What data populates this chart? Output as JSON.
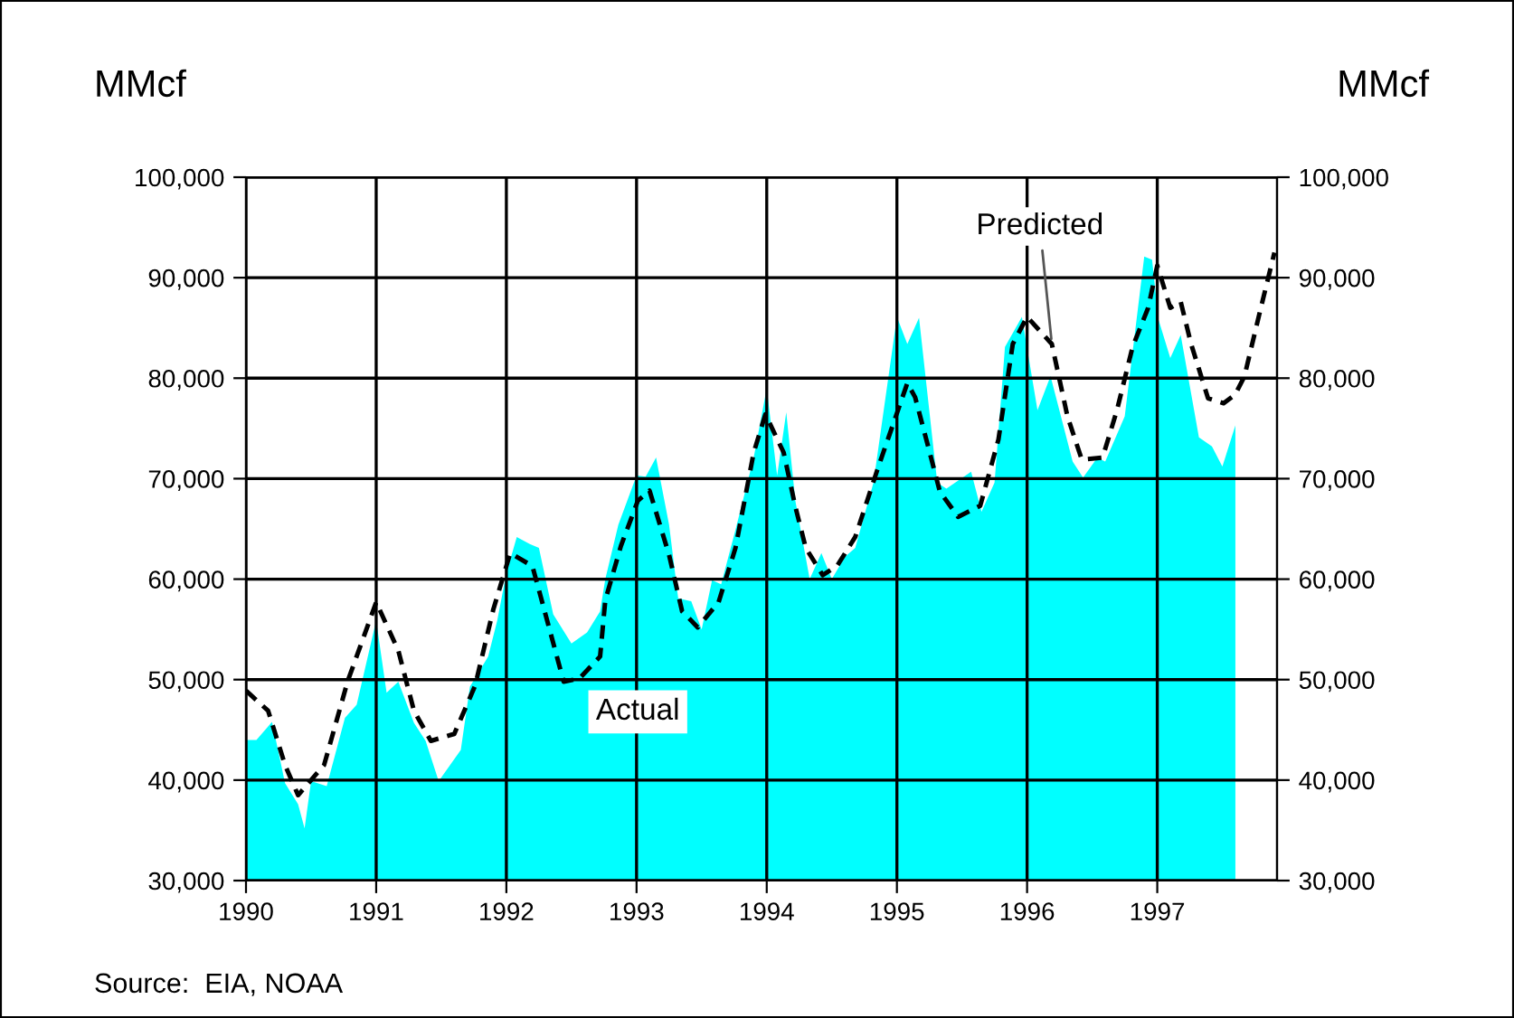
{
  "chart_data": {
    "type": "area",
    "xlabel": null,
    "ylabel": "MMcf",
    "y2label": "MMcf",
    "xlim": [
      1990,
      1997.92
    ],
    "xticks": [
      1990,
      1991,
      1992,
      1993,
      1994,
      1995,
      1996,
      1997
    ],
    "ylim": [
      30000,
      100000
    ],
    "yticks": [
      {
        "value": 30000,
        "label": "30,000"
      },
      {
        "value": 40000,
        "label": "40,000"
      },
      {
        "value": 50000,
        "label": "50,000"
      },
      {
        "value": 60000,
        "label": "60,000"
      },
      {
        "value": 70000,
        "label": "70,000"
      },
      {
        "value": 80000,
        "label": "80,000"
      },
      {
        "value": 90000,
        "label": "90,000"
      },
      {
        "value": 100000,
        "label": "100,000"
      }
    ],
    "y2lim": [
      30000,
      100000
    ],
    "y2ticks": [
      {
        "value": 30000,
        "label": "30,000"
      },
      {
        "value": 40000,
        "label": "40,000"
      },
      {
        "value": 50000,
        "label": "50,000"
      },
      {
        "value": 60000,
        "label": "60,000"
      },
      {
        "value": 70000,
        "label": "70,000"
      },
      {
        "value": 80000,
        "label": "80,000"
      },
      {
        "value": 90000,
        "label": "90,000"
      },
      {
        "value": 100000,
        "label": "100,000"
      }
    ],
    "grid": true,
    "series": [
      {
        "name": "Actual",
        "color": "#00ffff",
        "x": [
          1990.0,
          1990.08,
          1990.2,
          1990.3,
          1990.4,
          1990.45,
          1990.5,
          1990.62,
          1990.76,
          1990.85,
          1991.0,
          1991.08,
          1991.17,
          1991.29,
          1991.38,
          1991.48,
          1991.65,
          1991.72,
          1991.86,
          1991.93,
          1992.0,
          1992.08,
          1992.18,
          1992.25,
          1992.36,
          1992.5,
          1992.62,
          1992.72,
          1992.76,
          1992.86,
          1993.0,
          1993.07,
          1993.15,
          1993.25,
          1993.32,
          1993.42,
          1993.5,
          1993.58,
          1993.65,
          1993.76,
          1993.9,
          1994.0,
          1994.08,
          1994.15,
          1994.22,
          1994.33,
          1994.42,
          1994.5,
          1994.6,
          1994.68,
          1994.82,
          1995.0,
          1995.08,
          1995.17,
          1995.31,
          1995.38,
          1995.57,
          1995.65,
          1995.75,
          1995.83,
          1995.96,
          1996.08,
          1996.18,
          1996.35,
          1996.43,
          1996.54,
          1996.6,
          1996.75,
          1996.9,
          1996.96,
          1997.01,
          1997.1,
          1997.18,
          1997.32,
          1997.42,
          1997.5,
          1997.6
        ],
        "values": [
          44000,
          44000,
          45800,
          39700,
          37600,
          35200,
          39900,
          39400,
          46200,
          47500,
          55900,
          48700,
          49800,
          45700,
          43900,
          39900,
          43000,
          49300,
          52300,
          55900,
          60600,
          64200,
          63500,
          63100,
          56500,
          53600,
          54700,
          56800,
          60000,
          65400,
          70300,
          70200,
          72100,
          65400,
          58100,
          57800,
          55000,
          59900,
          59500,
          64900,
          72100,
          79000,
          70300,
          76600,
          67800,
          60000,
          62600,
          60000,
          62200,
          63100,
          69600,
          86100,
          83400,
          86000,
          69600,
          69000,
          70700,
          66700,
          69600,
          83100,
          86100,
          76800,
          80200,
          71700,
          70100,
          72100,
          71700,
          76200,
          92100,
          91800,
          85800,
          82000,
          84300,
          74100,
          73200,
          71200,
          75300
        ]
      },
      {
        "name": "Predicted",
        "type": "line",
        "color": "#000000",
        "line_style": "dashed",
        "x": [
          1990.0,
          1990.17,
          1990.3,
          1990.4,
          1990.6,
          1990.78,
          1991.0,
          1991.17,
          1991.29,
          1991.42,
          1991.6,
          1991.76,
          1991.9,
          1992.03,
          1992.2,
          1992.29,
          1992.44,
          1992.56,
          1992.72,
          1992.76,
          1992.88,
          1993.01,
          1993.1,
          1993.25,
          1993.35,
          1993.47,
          1993.63,
          1993.76,
          1993.9,
          1993.99,
          1994.13,
          1994.22,
          1994.3,
          1994.43,
          1994.54,
          1994.68,
          1994.85,
          1995.08,
          1995.14,
          1995.24,
          1995.33,
          1995.47,
          1995.64,
          1995.78,
          1995.89,
          1996.0,
          1996.19,
          1996.31,
          1996.42,
          1996.58,
          1996.69,
          1996.81,
          1996.93,
          1997.0,
          1997.1,
          1997.18,
          1997.26,
          1997.39,
          1997.51,
          1997.6,
          1997.67,
          1997.79,
          1997.9
        ],
        "values": [
          48900,
          46900,
          41500,
          38500,
          41500,
          49800,
          57700,
          52900,
          46900,
          43900,
          44600,
          49400,
          57000,
          62600,
          61300,
          57000,
          49800,
          50100,
          52300,
          57900,
          63300,
          67800,
          68800,
          62400,
          56800,
          55200,
          57700,
          63100,
          72600,
          76400,
          72600,
          67200,
          63100,
          60400,
          61300,
          64200,
          70900,
          79500,
          78100,
          73200,
          68700,
          66200,
          67300,
          73900,
          83400,
          86100,
          83400,
          76200,
          71900,
          72100,
          76800,
          83100,
          87000,
          91200,
          87000,
          87600,
          83400,
          78000,
          77500,
          78400,
          80200,
          86700,
          92500
        ]
      }
    ],
    "annotations": [
      "Source:  EIA, NOAA"
    ]
  }
}
